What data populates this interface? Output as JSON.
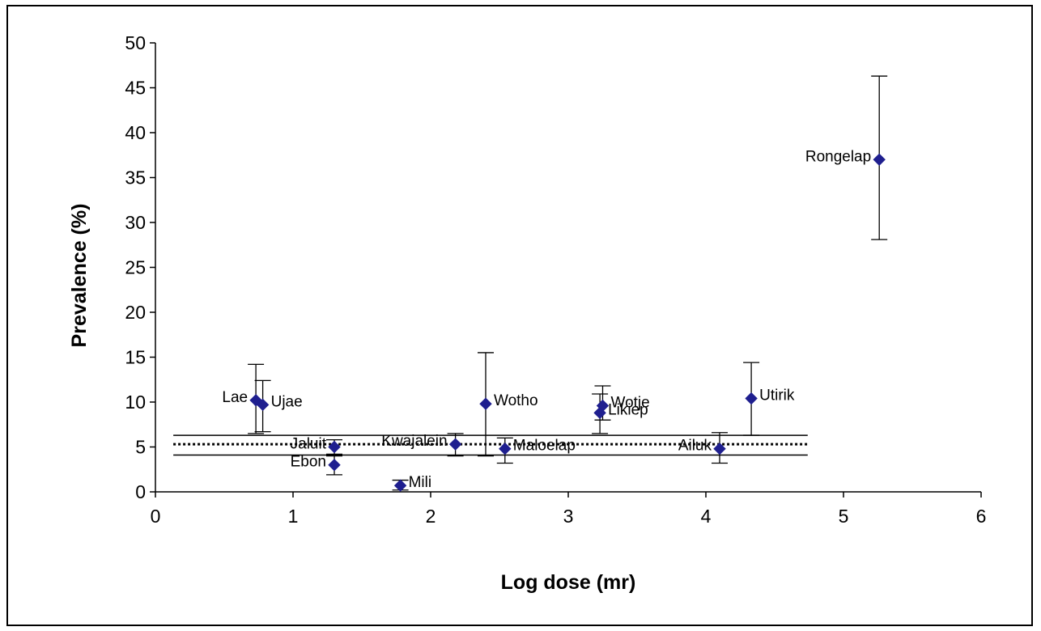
{
  "chart_data": {
    "type": "scatter",
    "title": "",
    "xlabel": "Log dose (mr)",
    "ylabel": "Prevalence (%)",
    "xlim": [
      0,
      6
    ],
    "ylim": [
      0,
      50
    ],
    "x_ticks": [
      "0",
      "1",
      "2",
      "3",
      "4",
      "5",
      "6"
    ],
    "y_ticks": [
      "0",
      "5",
      "10",
      "15",
      "20",
      "25",
      "30",
      "35",
      "40",
      "45",
      "50"
    ],
    "grid": false,
    "legend": "none",
    "marker_color": "#1f1f8f",
    "points": [
      {
        "label": "Lae",
        "x": 0.73,
        "y": 10.2,
        "err_low": 6.5,
        "err_high": 14.2,
        "label_side": "left"
      },
      {
        "label": "Ujae",
        "x": 0.78,
        "y": 9.7,
        "err_low": 6.7,
        "err_high": 12.4,
        "label_side": "right"
      },
      {
        "label": "Jaluit",
        "x": 1.3,
        "y": 5.0,
        "err_low": 4.0,
        "err_high": 5.8,
        "label_side": "left"
      },
      {
        "label": "Ebon",
        "x": 1.3,
        "y": 3.0,
        "err_low": 1.9,
        "err_high": 4.2,
        "label_side": "left"
      },
      {
        "label": "Mili",
        "x": 1.78,
        "y": 0.7,
        "err_low": 0.2,
        "err_high": 1.3,
        "label_side": "right"
      },
      {
        "label": "Kwajalein",
        "x": 2.18,
        "y": 5.3,
        "err_low": 4.0,
        "err_high": 6.5,
        "label_side": "left"
      },
      {
        "label": "Wotho",
        "x": 2.4,
        "y": 9.8,
        "err_low": 4.0,
        "err_high": 15.5,
        "label_side": "right"
      },
      {
        "label": "Maloelap",
        "x": 2.54,
        "y": 4.8,
        "err_low": 3.2,
        "err_high": 6.0,
        "label_side": "right"
      },
      {
        "label": "Wotje",
        "x": 3.25,
        "y": 9.6,
        "err_low": 8.0,
        "err_high": 11.8,
        "label_side": "right"
      },
      {
        "label": "Likiep",
        "x": 3.23,
        "y": 8.8,
        "err_low": 6.5,
        "err_high": 10.9,
        "label_side": "right"
      },
      {
        "label": "Ailuk",
        "x": 4.1,
        "y": 4.8,
        "err_low": 3.2,
        "err_high": 6.6,
        "label_side": "left"
      },
      {
        "label": "Utirik",
        "x": 4.33,
        "y": 10.4,
        "err_low": 6.3,
        "err_high": 14.4,
        "label_side": "right"
      },
      {
        "label": "Rongelap",
        "x": 5.26,
        "y": 37.0,
        "err_low": 28.1,
        "err_high": 46.3,
        "label_side": "left"
      }
    ],
    "reference_lines": [
      {
        "style": "solid",
        "y": 6.3,
        "x_range": [
          0.13,
          4.74
        ]
      },
      {
        "style": "dotted",
        "y": 5.3,
        "x_range": [
          0.13,
          4.74
        ]
      },
      {
        "style": "solid",
        "y": 4.1,
        "x_range": [
          0.13,
          4.74
        ]
      }
    ]
  }
}
